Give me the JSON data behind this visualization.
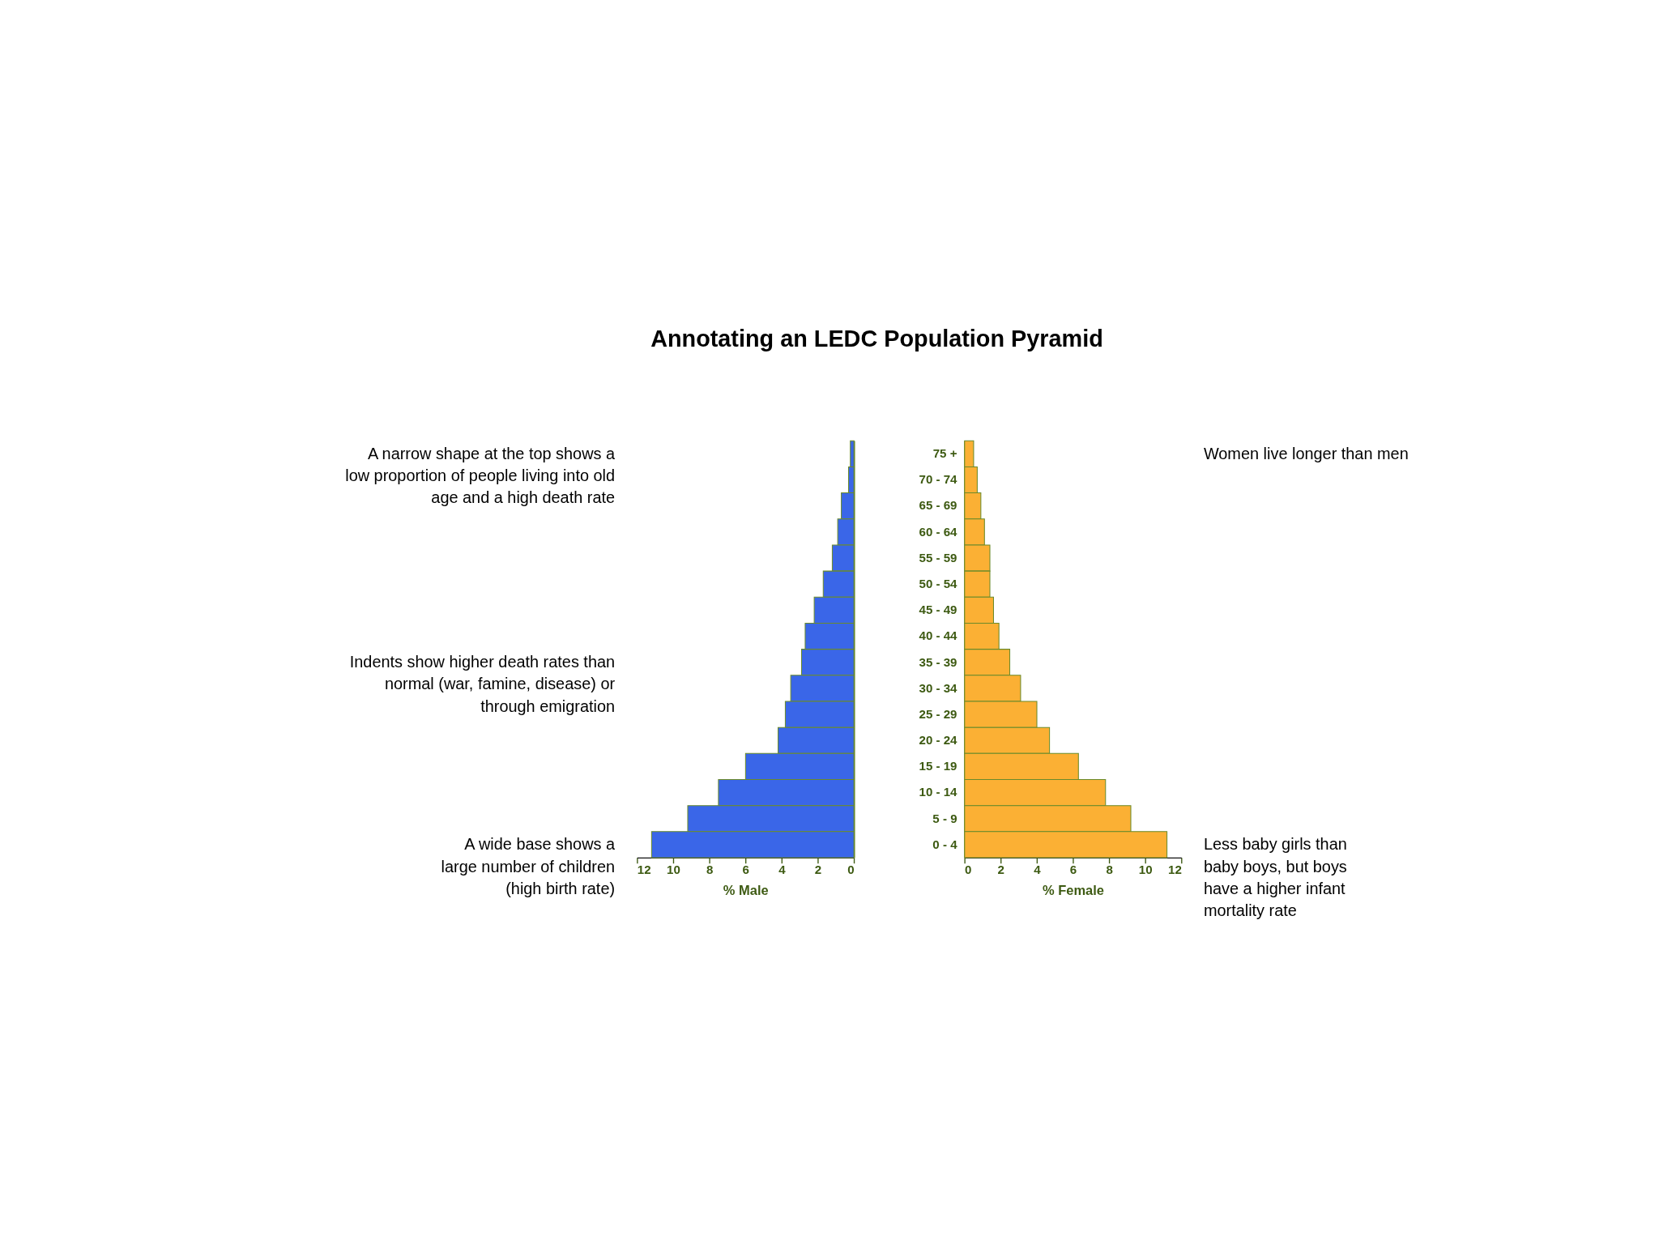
{
  "chart_data": [
    {
      "type": "bar",
      "orientation": "horizontal",
      "title": "Annotating an LEDC Population Pyramid",
      "xlabel": "% Male",
      "categories": [
        "75 +",
        "70 - 74",
        "65 - 69",
        "60 - 64",
        "55 - 59",
        "50 - 54",
        "45 - 49",
        "40 - 44",
        "35 - 39",
        "30 - 34",
        "25 - 29",
        "20 - 24",
        "15 - 19",
        "10 - 14",
        "5 - 9",
        "0 - 4"
      ],
      "series": [
        {
          "color": "#3a66e8",
          "values": [
            0.2,
            0.3,
            0.7,
            0.9,
            1.2,
            1.7,
            2.2,
            2.7,
            2.9,
            3.5,
            3.8,
            4.2,
            6.0,
            7.5,
            9.2,
            11.2
          ]
        }
      ],
      "xlim": [
        12,
        0
      ],
      "xticks": [
        12,
        10,
        8,
        6,
        4,
        2,
        0
      ],
      "tick_labels": "x",
      "grid": false,
      "annotations": [
        "A narrow shape at the top shows a\nlow proportion of people living into old\nage and a high death rate",
        "Indents show higher death rates than\nnormal (war, famine, disease) or\nthrough emigration",
        "A wide base shows a\nlarge number of children\n(high birth rate)"
      ]
    },
    {
      "type": "bar",
      "orientation": "horizontal",
      "xlabel": "% Female",
      "categories": [
        "75 +",
        "70 - 74",
        "65 - 69",
        "60 - 64",
        "55 - 59",
        "50 - 54",
        "45 - 49",
        "40 - 44",
        "35 - 39",
        "30 - 34",
        "25 - 29",
        "20 - 24",
        "15 - 19",
        "10 - 14",
        "5 - 9",
        "0 - 4"
      ],
      "series": [
        {
          "color": "#fbb034",
          "values": [
            0.5,
            0.7,
            0.9,
            1.1,
            1.4,
            1.4,
            1.6,
            1.9,
            2.5,
            3.1,
            4.0,
            4.7,
            6.3,
            7.8,
            9.2,
            11.2
          ]
        }
      ],
      "xlim": [
        0,
        12
      ],
      "xticks": [
        0,
        2,
        4,
        6,
        8,
        10,
        12
      ],
      "grid": false,
      "annotations": [
        "Women live longer than men",
        "Less baby girls than\nbaby boys, but boys\nhave a higher infant\nmortality rate"
      ]
    }
  ]
}
